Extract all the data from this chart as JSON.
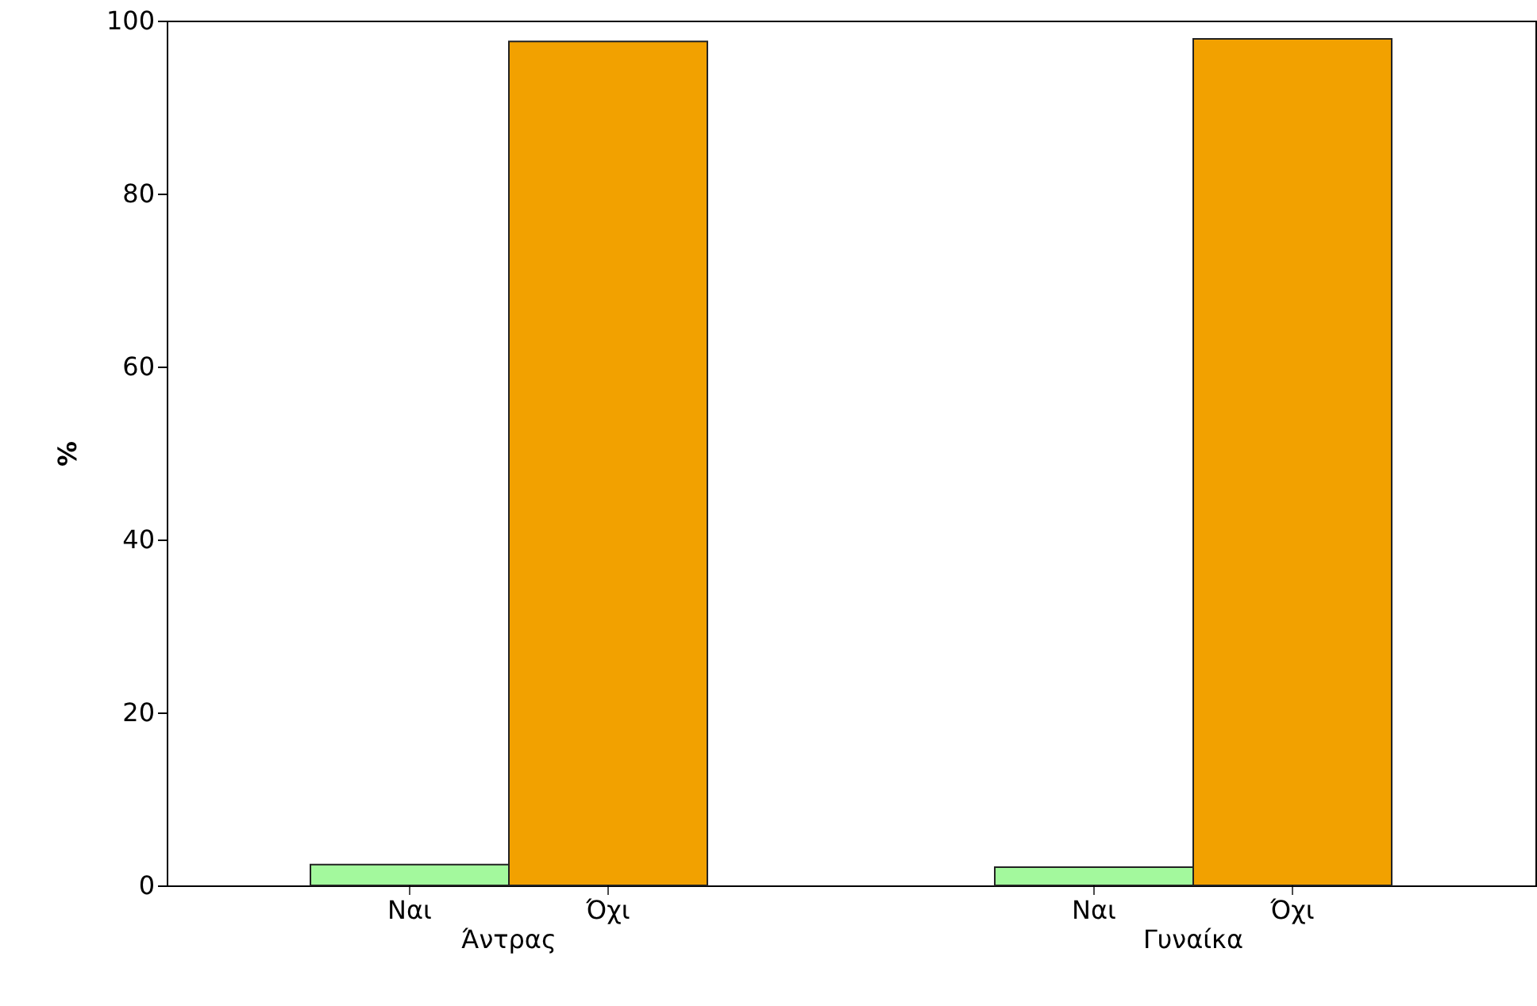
{
  "chart_data": {
    "type": "bar",
    "ylabel": "%",
    "categories": [
      "Άντρας",
      "Γυναίκα"
    ],
    "series": [
      {
        "name": "Ναι",
        "color": "#a3f99d",
        "values": [
          2.4,
          2.1
        ]
      },
      {
        "name": "Όχι",
        "color": "#f2a100",
        "values": [
          97.6,
          97.9
        ]
      }
    ],
    "ylim": [
      0,
      100
    ],
    "yticks": [
      0,
      20,
      40,
      60,
      80,
      100
    ],
    "grid": false
  }
}
